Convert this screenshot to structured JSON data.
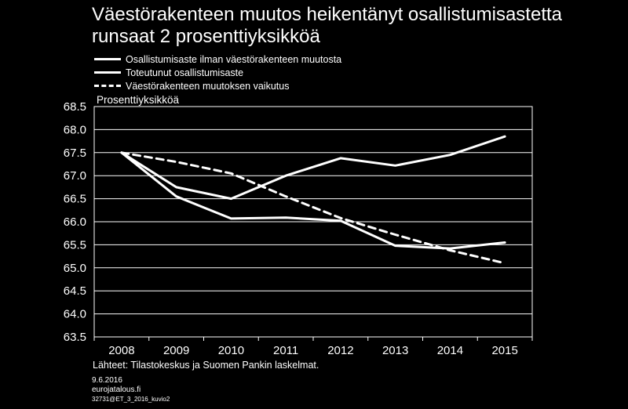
{
  "title_line1": "Väestörakenteen muutos heikentänyt osallistumisastetta",
  "title_line2": "runsaat 2 prosenttiyksikköä",
  "unit_label": "Prosenttiyksikköä",
  "source": "Lähteet: Tilastokeskus ja Suomen Pankin laskelmat.",
  "footer": {
    "date": "9.6.2016",
    "site": "eurojatalous.fi",
    "code": "32731@ET_3_2016_kuvio2"
  },
  "colors": {
    "background": "#000000",
    "foreground": "#ffffff"
  },
  "chart_data": {
    "type": "line",
    "categories": [
      "2008",
      "2009",
      "2010",
      "2011",
      "2012",
      "2013",
      "2014",
      "2015"
    ],
    "yticks": [
      "63.5",
      "64.0",
      "64.5",
      "65.0",
      "65.5",
      "66.0",
      "66.5",
      "67.0",
      "67.5",
      "68.0",
      "68.5"
    ],
    "ylim": [
      63.5,
      68.5
    ],
    "grid": true,
    "legend_position": "top-left",
    "series": [
      {
        "name": "Osallistumisaste ilman väestörakenteen muutosta",
        "style": "solid",
        "values": [
          67.5,
          66.75,
          66.5,
          67.0,
          67.38,
          67.22,
          67.45,
          67.85
        ]
      },
      {
        "name": "Toteutunut osallistumisaste",
        "style": "solid",
        "values": [
          67.5,
          66.55,
          66.07,
          66.09,
          66.02,
          65.48,
          65.42,
          65.55
        ]
      },
      {
        "name": "Väestörakenteen muutoksen vaikutus",
        "style": "dashed",
        "values": [
          67.5,
          67.3,
          67.05,
          66.55,
          66.08,
          65.72,
          65.38,
          65.1
        ]
      }
    ]
  }
}
